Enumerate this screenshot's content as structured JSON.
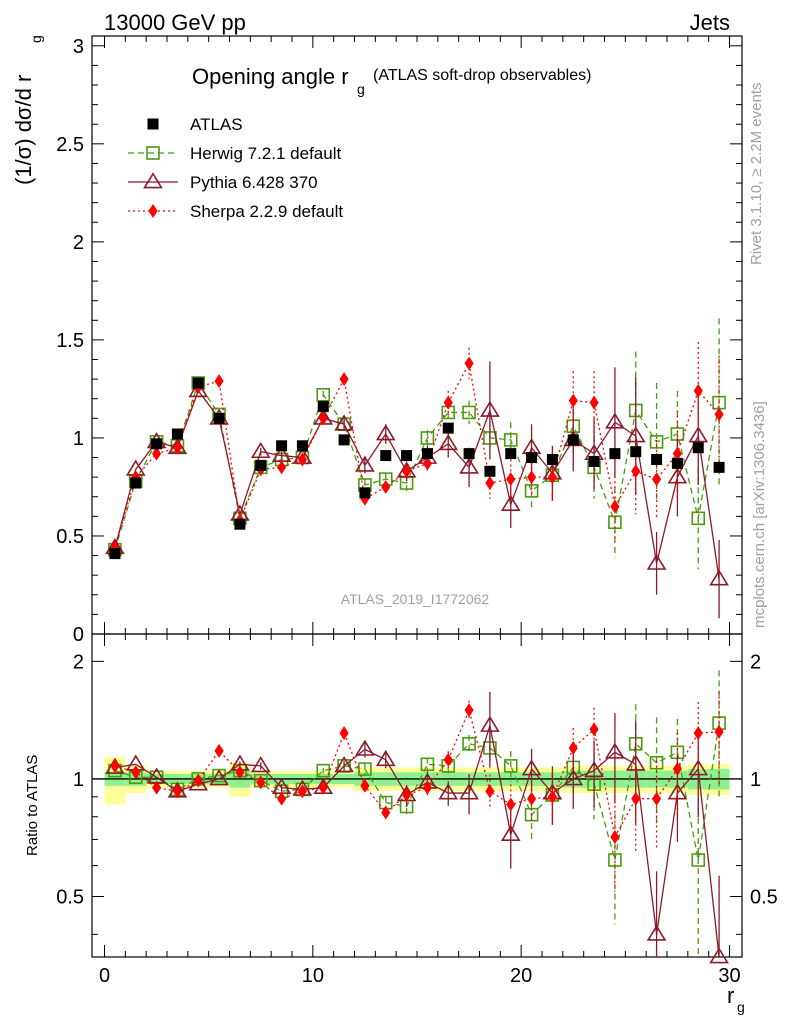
{
  "header": {
    "left": "13000 GeV pp",
    "right": "Jets"
  },
  "side_labels": {
    "top": "Rivet 3.1.10, ≥ 2.2M events",
    "bottom": "mcplots.cern.ch [arXiv:1306.3436]"
  },
  "colors": {
    "data": "#000000",
    "herwig": "#4b9a10",
    "pythia": "#8b1a2b",
    "sherpa": "#ff0000",
    "band_inner": "#8ff08f",
    "band_outer": "#ffff99"
  },
  "chart_data": {
    "type": "line",
    "title_main": "Opening angle r",
    "title_sub": "g",
    "title_note": "(ATLAS soft-drop observables)",
    "analysis_id": "ATLAS_2019_I1772062",
    "xlabel": "r",
    "xlabel_sub": "g",
    "ylabel_main": "(1/σ) dσ/d r",
    "ylabel_sub": "g",
    "ratio_ylabel": "Ratio to ATLAS",
    "xlim": [
      -0.6,
      30.6
    ],
    "ylim_main": [
      0,
      3.05
    ],
    "ylim_ratio": [
      0.35,
      2.35
    ],
    "x_ticks": [
      "0",
      "10",
      "20",
      "30"
    ],
    "y_ticks_main": [
      "0",
      "0.5",
      "1",
      "1.5",
      "2",
      "2.5",
      "3"
    ],
    "y_ticks_ratio": [
      "0.5",
      "1",
      "2"
    ],
    "ratio_ticks_right": [
      "0.5",
      "1",
      "2"
    ],
    "legend_position": "top-left",
    "x": [
      0.5,
      1.5,
      2.5,
      3.5,
      4.5,
      5.5,
      6.5,
      7.5,
      8.5,
      9.5,
      10.5,
      11.5,
      12.5,
      13.5,
      14.5,
      15.5,
      16.5,
      17.5,
      18.5,
      19.5,
      20.5,
      21.5,
      22.5,
      23.5,
      24.5,
      25.5,
      26.5,
      27.5,
      28.5,
      29.5
    ],
    "series": [
      {
        "name": "ATLAS",
        "key": "atlas",
        "values": [
          0.41,
          0.77,
          0.97,
          1.02,
          1.28,
          1.1,
          0.56,
          0.86,
          0.96,
          0.96,
          1.16,
          0.99,
          0.72,
          0.91,
          0.91,
          0.92,
          1.05,
          0.92,
          0.83,
          0.92,
          0.9,
          0.89,
          0.99,
          0.88,
          0.92,
          0.93,
          0.89,
          0.87,
          0.95,
          0.85
        ],
        "band_inner": [
          0.04,
          0.04,
          0.03,
          0.03,
          0.03,
          0.03,
          0.05,
          0.03,
          0.03,
          0.03,
          0.03,
          0.03,
          0.04,
          0.04,
          0.04,
          0.04,
          0.04,
          0.04,
          0.04,
          0.04,
          0.04,
          0.04,
          0.05,
          0.05,
          0.05,
          0.05,
          0.05,
          0.05,
          0.06,
          0.06
        ],
        "band_outer": [
          0.14,
          0.08,
          0.05,
          0.05,
          0.05,
          0.05,
          0.1,
          0.05,
          0.05,
          0.05,
          0.05,
          0.05,
          0.07,
          0.07,
          0.07,
          0.07,
          0.07,
          0.07,
          0.07,
          0.07,
          0.07,
          0.07,
          0.08,
          0.08,
          0.08,
          0.08,
          0.08,
          0.08,
          0.09,
          0.09
        ]
      },
      {
        "name": "Herwig 7.2.1 default",
        "key": "herwig",
        "values": [
          0.43,
          0.78,
          0.98,
          0.96,
          1.28,
          1.12,
          0.59,
          0.85,
          0.89,
          0.9,
          1.22,
          1.07,
          0.76,
          0.79,
          0.77,
          1.0,
          1.13,
          1.13,
          1.0,
          0.99,
          0.73,
          0.81,
          1.06,
          0.85,
          0.57,
          1.14,
          0.98,
          1.02,
          0.59,
          1.18
        ],
        "errors": [
          0.01,
          0.01,
          0.01,
          0.01,
          0.01,
          0.01,
          0.01,
          0.01,
          0.02,
          0.02,
          0.02,
          0.02,
          0.03,
          0.03,
          0.04,
          0.04,
          0.05,
          0.06,
          0.08,
          0.09,
          0.1,
          0.12,
          0.14,
          0.16,
          0.18,
          0.3,
          0.3,
          0.22,
          0.26,
          0.43
        ],
        "ratio": [
          1.05,
          1.01,
          1.01,
          0.94,
          1.0,
          1.02,
          1.05,
          0.99,
          0.93,
          0.94,
          1.05,
          1.08,
          1.06,
          0.87,
          0.85,
          1.09,
          1.08,
          1.23,
          1.2,
          1.08,
          0.81,
          0.91,
          1.07,
          0.97,
          0.62,
          1.23,
          1.1,
          1.17,
          0.62,
          1.39
        ]
      },
      {
        "name": "Pythia 6.428 370",
        "key": "pythia",
        "values": [
          0.44,
          0.84,
          0.98,
          0.95,
          1.24,
          1.1,
          0.61,
          0.93,
          0.91,
          0.9,
          1.1,
          1.07,
          0.86,
          1.02,
          0.83,
          0.9,
          0.97,
          0.85,
          1.14,
          0.66,
          0.95,
          0.82,
          0.99,
          0.92,
          1.08,
          1.01,
          0.36,
          0.8,
          1.01,
          0.28
        ],
        "errors": [
          0.01,
          0.01,
          0.01,
          0.01,
          0.01,
          0.01,
          0.01,
          0.02,
          0.02,
          0.02,
          0.02,
          0.03,
          0.04,
          0.05,
          0.05,
          0.06,
          0.07,
          0.1,
          0.25,
          0.12,
          0.12,
          0.14,
          0.16,
          0.18,
          0.28,
          0.3,
          0.16,
          0.2,
          0.25,
          0.2
        ],
        "ratio": [
          1.07,
          1.09,
          1.01,
          0.93,
          0.97,
          1.0,
          1.09,
          1.08,
          0.95,
          0.94,
          0.95,
          1.08,
          1.19,
          1.12,
          0.91,
          0.98,
          0.92,
          0.92,
          1.37,
          0.72,
          1.06,
          0.92,
          1.0,
          1.05,
          1.17,
          1.09,
          0.4,
          0.92,
          1.06,
          0.33
        ]
      },
      {
        "name": "Sherpa 2.2.9 default",
        "key": "sherpa",
        "values": [
          0.44,
          0.8,
          0.92,
          0.95,
          1.26,
          1.29,
          0.58,
          0.84,
          0.85,
          0.89,
          1.1,
          1.3,
          0.69,
          0.75,
          0.83,
          0.87,
          1.18,
          1.38,
          0.77,
          0.79,
          0.8,
          0.8,
          1.19,
          1.18,
          0.65,
          0.83,
          0.79,
          0.92,
          1.24,
          1.12
        ],
        "errors": [
          0.01,
          0.01,
          0.01,
          0.01,
          0.01,
          0.01,
          0.01,
          0.01,
          0.02,
          0.02,
          0.02,
          0.03,
          0.03,
          0.03,
          0.04,
          0.05,
          0.06,
          0.08,
          0.08,
          0.1,
          0.1,
          0.12,
          0.15,
          0.16,
          0.18,
          0.22,
          0.2,
          0.22,
          0.25,
          0.3
        ],
        "ratio": [
          1.08,
          1.04,
          0.95,
          0.93,
          0.99,
          1.18,
          1.04,
          0.98,
          0.89,
          0.93,
          0.95,
          1.31,
          0.96,
          0.82,
          0.91,
          0.95,
          1.12,
          1.5,
          0.93,
          0.86,
          0.89,
          0.9,
          1.2,
          1.34,
          0.71,
          0.89,
          0.89,
          1.06,
          1.31,
          1.32
        ]
      }
    ]
  }
}
